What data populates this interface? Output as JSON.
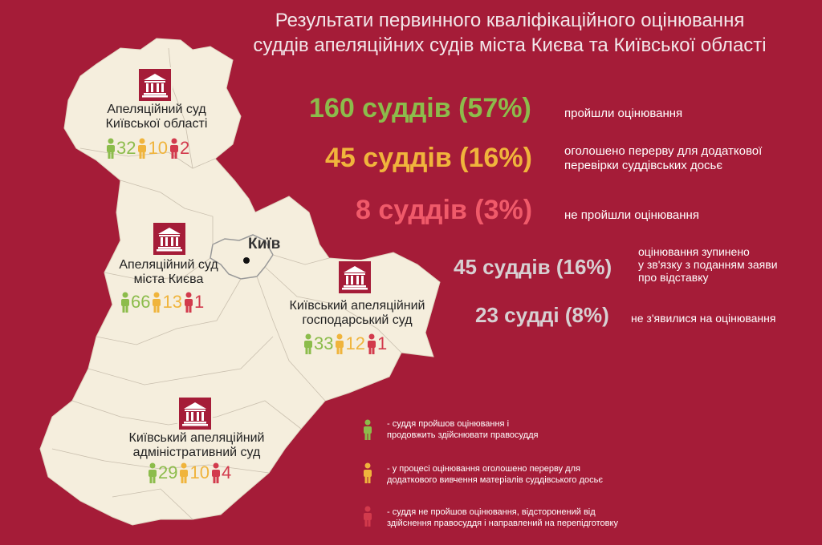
{
  "title_line1": "Результати первинного кваліфікаційного оцінювання",
  "title_line2": "суддів апеляційних судів міста Києва та Київської області",
  "colors": {
    "background": "#a51c38",
    "map": "#f5eedd",
    "passed": "#8cbc4b",
    "paused": "#f0b43c",
    "failed": "#d23a4c",
    "stopped": "#d7d0d2"
  },
  "kyiv_label": "Київ",
  "courts": [
    {
      "name_line1": "Апеляційний суд",
      "name_line2": "Київської області",
      "passed": "32",
      "paused": "10",
      "failed": "2"
    },
    {
      "name_line1": "Апеляційний суд",
      "name_line2": "міста Києва",
      "passed": "66",
      "paused": "13",
      "failed": "1"
    },
    {
      "name_line1": "Київський апеляційний",
      "name_line2": "господарський суд",
      "passed": "33",
      "paused": "12",
      "failed": "1"
    },
    {
      "name_line1": "Київський апеляційний",
      "name_line2": "адміністративний суд",
      "passed": "29",
      "paused": "10",
      "failed": "4"
    }
  ],
  "stats": [
    {
      "value": "160 суддів (57%)",
      "note_line1": "пройшли оцінювання",
      "note_line2": "",
      "note_line3": ""
    },
    {
      "value": "45 суддів (16%)",
      "note_line1": "оголошено перерву для додаткової",
      "note_line2": "перевірки суддівських досьє",
      "note_line3": ""
    },
    {
      "value": "8 суддів (3%)",
      "note_line1": "не пройшли оцінювання",
      "note_line2": "",
      "note_line3": ""
    },
    {
      "value": "45 суддів (16%)",
      "note_line1": "оцінювання зупинено",
      "note_line2": "у зв'язку з поданням заяви",
      "note_line3": "про відставку"
    },
    {
      "value": "23 судді (8%)",
      "note_line1": "не з'явилися на оцінювання",
      "note_line2": "",
      "note_line3": ""
    }
  ],
  "legend": [
    {
      "line1": "- суддя пройшов оцінювання і",
      "line2": "продовжить здійснювати правосуддя"
    },
    {
      "line1": "- у процесі оцінювання оголошено перерву для",
      "line2": "додаткового вивчення матеріалів суддівського досьє"
    },
    {
      "line1": "- суддя не пройшов оцінювання, відсторонений від",
      "line2": "здійснення правосуддя і направлений на перепідготовку"
    }
  ]
}
